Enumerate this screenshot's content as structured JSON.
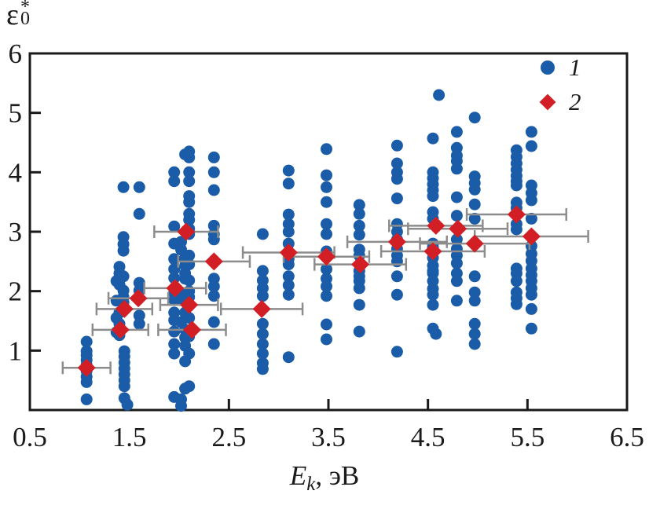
{
  "figure": {
    "y_axis_title": {
      "base": "ε",
      "superscript": "*",
      "subscript": "0"
    },
    "x_axis_title": {
      "variable": "E",
      "subscript": "k",
      "suffix": ", эВ"
    }
  },
  "colors": {
    "series1": "#1a5ca8",
    "series2": "#d21f26",
    "error_bar": "#8c8c8c",
    "axis": "#1a1a1a"
  },
  "chart_data": {
    "type": "scatter",
    "title": "",
    "xlabel": "E_k, эВ",
    "ylabel": "ε₀*",
    "xlim": [
      0.5,
      6.5
    ],
    "ylim": [
      0,
      6
    ],
    "grid": false,
    "legend_position": "top-right",
    "x_tick_labels": [
      "0.5",
      "1.5",
      "2.5",
      "3.5",
      "4.5",
      "5.5",
      "6.5"
    ],
    "x_ticks": [
      0.5,
      1.5,
      2.5,
      3.5,
      4.5,
      5.5,
      6.5
    ],
    "y_tick_labels": [
      "1",
      "2",
      "3",
      "4",
      "5",
      "6"
    ],
    "y_ticks": [
      1,
      2,
      3,
      4,
      5,
      6
    ],
    "legend": [
      {
        "label": "1",
        "marker": "circle",
        "color": "#1a5ca8"
      },
      {
        "label": "2",
        "marker": "diamond",
        "color": "#d21f26"
      }
    ],
    "series": [
      {
        "name": "1",
        "marker": "circle",
        "color": "#1a5ca8",
        "points": [
          [
            1.07,
            1.15
          ],
          [
            1.07,
            0.99
          ],
          [
            1.07,
            0.92
          ],
          [
            1.07,
            0.84
          ],
          [
            1.07,
            0.76
          ],
          [
            1.07,
            0.66
          ],
          [
            1.07,
            0.56
          ],
          [
            1.07,
            0.47
          ],
          [
            1.07,
            0.18
          ],
          [
            1.37,
            2.17
          ],
          [
            1.37,
            1.84
          ],
          [
            1.37,
            1.55
          ],
          [
            1.37,
            1.31
          ],
          [
            1.4,
            2.41
          ],
          [
            1.4,
            2.3
          ],
          [
            1.4,
            2.11
          ],
          [
            1.4,
            1.64
          ],
          [
            1.4,
            1.45
          ],
          [
            1.4,
            1.26
          ],
          [
            1.44,
            3.75
          ],
          [
            1.44,
            2.91
          ],
          [
            1.44,
            2.79
          ],
          [
            1.44,
            2.68
          ],
          [
            1.44,
            2.25
          ],
          [
            1.44,
            2.01
          ],
          [
            1.44,
            1.9
          ],
          [
            1.44,
            1.81
          ],
          [
            1.45,
            0.99
          ],
          [
            1.45,
            0.9
          ],
          [
            1.45,
            0.8
          ],
          [
            1.45,
            0.7
          ],
          [
            1.45,
            0.6
          ],
          [
            1.45,
            0.5
          ],
          [
            1.45,
            0.4
          ],
          [
            1.45,
            0.2
          ],
          [
            1.48,
            0.09
          ],
          [
            1.6,
            3.75
          ],
          [
            1.6,
            3.3
          ],
          [
            1.6,
            2.14
          ],
          [
            1.6,
            2.01
          ],
          [
            1.6,
            1.59
          ],
          [
            1.6,
            1.45
          ],
          [
            1.95,
            4.0
          ],
          [
            1.95,
            3.85
          ],
          [
            1.95,
            3.09
          ],
          [
            1.95,
            2.8
          ],
          [
            1.95,
            2.54
          ],
          [
            1.95,
            2.37
          ],
          [
            1.95,
            2.22
          ],
          [
            1.95,
            1.97
          ],
          [
            1.95,
            1.85
          ],
          [
            1.95,
            1.64
          ],
          [
            1.95,
            1.51
          ],
          [
            1.95,
            1.32
          ],
          [
            1.95,
            1.11
          ],
          [
            1.95,
            0.95
          ],
          [
            1.95,
            0.22
          ],
          [
            2.02,
            2.83
          ],
          [
            2.02,
            2.7
          ],
          [
            2.02,
            1.97
          ],
          [
            2.02,
            1.85
          ],
          [
            2.02,
            1.48
          ],
          [
            2.02,
            0.18
          ],
          [
            2.02,
            0.07
          ],
          [
            2.06,
            4.3
          ],
          [
            2.06,
            2.56
          ],
          [
            2.06,
            2.43
          ],
          [
            2.06,
            2.3
          ],
          [
            2.06,
            2.21
          ],
          [
            2.06,
            1.92
          ],
          [
            2.06,
            1.64
          ],
          [
            2.06,
            1.35
          ],
          [
            2.06,
            1.22
          ],
          [
            2.06,
            1.08
          ],
          [
            2.06,
            0.82
          ],
          [
            2.06,
            0.36
          ],
          [
            2.1,
            4.35
          ],
          [
            2.1,
            4.25
          ],
          [
            2.1,
            4.0
          ],
          [
            2.1,
            3.85
          ],
          [
            2.1,
            3.6
          ],
          [
            2.1,
            3.5
          ],
          [
            2.1,
            3.3
          ],
          [
            2.1,
            3.2
          ],
          [
            2.1,
            3.05
          ],
          [
            2.1,
            2.96
          ],
          [
            2.1,
            2.6
          ],
          [
            2.1,
            2.45
          ],
          [
            2.1,
            2.18
          ],
          [
            2.1,
            2.0
          ],
          [
            2.1,
            1.9
          ],
          [
            2.1,
            1.55
          ],
          [
            2.1,
            1.24
          ],
          [
            2.1,
            0.95
          ],
          [
            2.1,
            0.4
          ],
          [
            2.35,
            4.25
          ],
          [
            2.35,
            4.0
          ],
          [
            2.35,
            3.7
          ],
          [
            2.35,
            3.1
          ],
          [
            2.35,
            2.96
          ],
          [
            2.35,
            2.87
          ],
          [
            2.35,
            2.21
          ],
          [
            2.35,
            2.08
          ],
          [
            2.35,
            1.92
          ],
          [
            2.35,
            1.48
          ],
          [
            2.35,
            1.11
          ],
          [
            2.84,
            2.96
          ],
          [
            2.84,
            2.34
          ],
          [
            2.84,
            2.18
          ],
          [
            2.84,
            2.05
          ],
          [
            2.84,
            1.92
          ],
          [
            2.84,
            1.45
          ],
          [
            2.84,
            1.28
          ],
          [
            2.84,
            1.11
          ],
          [
            2.84,
            0.95
          ],
          [
            2.84,
            0.79
          ],
          [
            2.84,
            0.69
          ],
          [
            3.1,
            4.03
          ],
          [
            3.1,
            3.81
          ],
          [
            3.1,
            3.29
          ],
          [
            3.1,
            3.13
          ],
          [
            3.1,
            3.0
          ],
          [
            3.1,
            2.8
          ],
          [
            3.1,
            2.54
          ],
          [
            3.1,
            2.45
          ],
          [
            3.1,
            2.25
          ],
          [
            3.1,
            2.1
          ],
          [
            3.1,
            1.94
          ],
          [
            3.1,
            0.89
          ],
          [
            3.48,
            4.39
          ],
          [
            3.48,
            3.95
          ],
          [
            3.48,
            3.75
          ],
          [
            3.48,
            3.5
          ],
          [
            3.48,
            3.13
          ],
          [
            3.48,
            2.96
          ],
          [
            3.48,
            2.67
          ],
          [
            3.48,
            2.37
          ],
          [
            3.48,
            2.21
          ],
          [
            3.48,
            2.08
          ],
          [
            3.48,
            1.92
          ],
          [
            3.48,
            1.44
          ],
          [
            3.48,
            1.19
          ],
          [
            3.81,
            3.45
          ],
          [
            3.81,
            3.3
          ],
          [
            3.81,
            3.1
          ],
          [
            3.81,
            2.95
          ],
          [
            3.81,
            2.7
          ],
          [
            3.81,
            2.6
          ],
          [
            3.81,
            2.34
          ],
          [
            3.81,
            2.25
          ],
          [
            3.81,
            2.17
          ],
          [
            3.81,
            2.05
          ],
          [
            3.81,
            1.77
          ],
          [
            3.81,
            1.32
          ],
          [
            4.19,
            4.45
          ],
          [
            4.19,
            4.15
          ],
          [
            4.19,
            4.0
          ],
          [
            4.19,
            3.89
          ],
          [
            4.19,
            3.56
          ],
          [
            4.19,
            3.13
          ],
          [
            4.19,
            3.0
          ],
          [
            4.19,
            2.87
          ],
          [
            4.19,
            2.71
          ],
          [
            4.19,
            2.6
          ],
          [
            4.19,
            2.5
          ],
          [
            4.19,
            2.25
          ],
          [
            4.19,
            1.94
          ],
          [
            4.19,
            0.98
          ],
          [
            4.55,
            4.57
          ],
          [
            4.55,
            4.0
          ],
          [
            4.55,
            3.9
          ],
          [
            4.55,
            3.8
          ],
          [
            4.55,
            3.7
          ],
          [
            4.55,
            3.6
          ],
          [
            4.55,
            3.33
          ],
          [
            4.55,
            3.22
          ],
          [
            4.55,
            2.8
          ],
          [
            4.55,
            2.74
          ],
          [
            4.55,
            2.56
          ],
          [
            4.55,
            2.43
          ],
          [
            4.55,
            2.34
          ],
          [
            4.55,
            2.3
          ],
          [
            4.55,
            2.17
          ],
          [
            4.55,
            2.04
          ],
          [
            4.55,
            1.94
          ],
          [
            4.55,
            1.77
          ],
          [
            4.55,
            1.37
          ],
          [
            4.58,
            1.28
          ],
          [
            4.61,
            5.3
          ],
          [
            4.79,
            4.68
          ],
          [
            4.79,
            4.41
          ],
          [
            4.79,
            4.28
          ],
          [
            4.79,
            4.19
          ],
          [
            4.79,
            4.06
          ],
          [
            4.79,
            3.58
          ],
          [
            4.79,
            3.27
          ],
          [
            4.79,
            2.87
          ],
          [
            4.79,
            2.71
          ],
          [
            4.79,
            2.6
          ],
          [
            4.79,
            2.47
          ],
          [
            4.79,
            2.3
          ],
          [
            4.79,
            2.17
          ],
          [
            4.79,
            1.84
          ],
          [
            4.97,
            4.92
          ],
          [
            4.97,
            3.93
          ],
          [
            4.97,
            3.82
          ],
          [
            4.97,
            3.71
          ],
          [
            4.97,
            3.46
          ],
          [
            4.97,
            3.22
          ],
          [
            4.97,
            2.25
          ],
          [
            4.97,
            1.98
          ],
          [
            4.97,
            1.84
          ],
          [
            4.97,
            1.45
          ],
          [
            4.97,
            1.28
          ],
          [
            4.97,
            1.11
          ],
          [
            5.39,
            4.37
          ],
          [
            5.39,
            4.26
          ],
          [
            5.39,
            4.15
          ],
          [
            5.39,
            4.04
          ],
          [
            5.39,
            3.94
          ],
          [
            5.39,
            3.85
          ],
          [
            5.39,
            3.78
          ],
          [
            5.39,
            3.49
          ],
          [
            5.39,
            3.4
          ],
          [
            5.39,
            3.13
          ],
          [
            5.39,
            3.04
          ],
          [
            5.39,
            2.38
          ],
          [
            5.39,
            2.3
          ],
          [
            5.39,
            2.17
          ],
          [
            5.39,
            1.98
          ],
          [
            5.39,
            1.88
          ],
          [
            5.39,
            1.78
          ],
          [
            5.54,
            4.68
          ],
          [
            5.54,
            4.44
          ],
          [
            5.54,
            3.78
          ],
          [
            5.54,
            3.65
          ],
          [
            5.54,
            3.53
          ],
          [
            5.54,
            3.22
          ],
          [
            5.54,
            2.76
          ],
          [
            5.54,
            2.63
          ],
          [
            5.54,
            2.51
          ],
          [
            5.54,
            2.38
          ],
          [
            5.54,
            2.27
          ],
          [
            5.54,
            2.17
          ],
          [
            5.54,
            2.05
          ],
          [
            5.54,
            1.94
          ],
          [
            5.54,
            1.7
          ],
          [
            5.54,
            1.37
          ]
        ]
      },
      {
        "name": "2",
        "marker": "diamond",
        "color": "#d21f26",
        "error_color": "#8c8c8c",
        "points": [
          {
            "x": 1.07,
            "y": 0.71,
            "xerr": 0.24,
            "yerr": 0.08
          },
          {
            "x": 1.41,
            "y": 1.35,
            "xerr": 0.28,
            "yerr": 0.08
          },
          {
            "x": 1.45,
            "y": 1.7,
            "xerr": 0.28,
            "yerr": 0.08
          },
          {
            "x": 1.59,
            "y": 1.88,
            "xerr": 0.3,
            "yerr": 0.08
          },
          {
            "x": 1.96,
            "y": 2.05,
            "xerr": 0.31,
            "yerr": 0.08
          },
          {
            "x": 2.07,
            "y": 3.0,
            "xerr": 0.32,
            "yerr": 0.08
          },
          {
            "x": 2.1,
            "y": 1.77,
            "xerr": 0.29,
            "yerr": 0.08
          },
          {
            "x": 2.13,
            "y": 1.35,
            "xerr": 0.34,
            "yerr": 0.08
          },
          {
            "x": 2.35,
            "y": 2.5,
            "xerr": 0.36,
            "yerr": 0.08
          },
          {
            "x": 2.83,
            "y": 1.7,
            "xerr": 0.41,
            "yerr": 0.08
          },
          {
            "x": 3.1,
            "y": 2.65,
            "xerr": 0.46,
            "yerr": 0.08
          },
          {
            "x": 3.48,
            "y": 2.58,
            "xerr": 0.43,
            "yerr": 0.08
          },
          {
            "x": 3.82,
            "y": 2.45,
            "xerr": 0.46,
            "yerr": 0.08
          },
          {
            "x": 4.19,
            "y": 2.83,
            "xerr": 0.5,
            "yerr": 0.08
          },
          {
            "x": 4.55,
            "y": 2.67,
            "xerr": 0.52,
            "yerr": 0.08
          },
          {
            "x": 4.58,
            "y": 3.1,
            "xerr": 0.47,
            "yerr": 0.08
          },
          {
            "x": 4.8,
            "y": 3.05,
            "xerr": 0.5,
            "yerr": 0.08
          },
          {
            "x": 4.97,
            "y": 2.8,
            "xerr": 0.55,
            "yerr": 0.08
          },
          {
            "x": 5.39,
            "y": 3.29,
            "xerr": 0.5,
            "yerr": 0.08
          },
          {
            "x": 5.54,
            "y": 2.92,
            "xerr": 0.57,
            "yerr": 0.08
          }
        ]
      }
    ]
  }
}
